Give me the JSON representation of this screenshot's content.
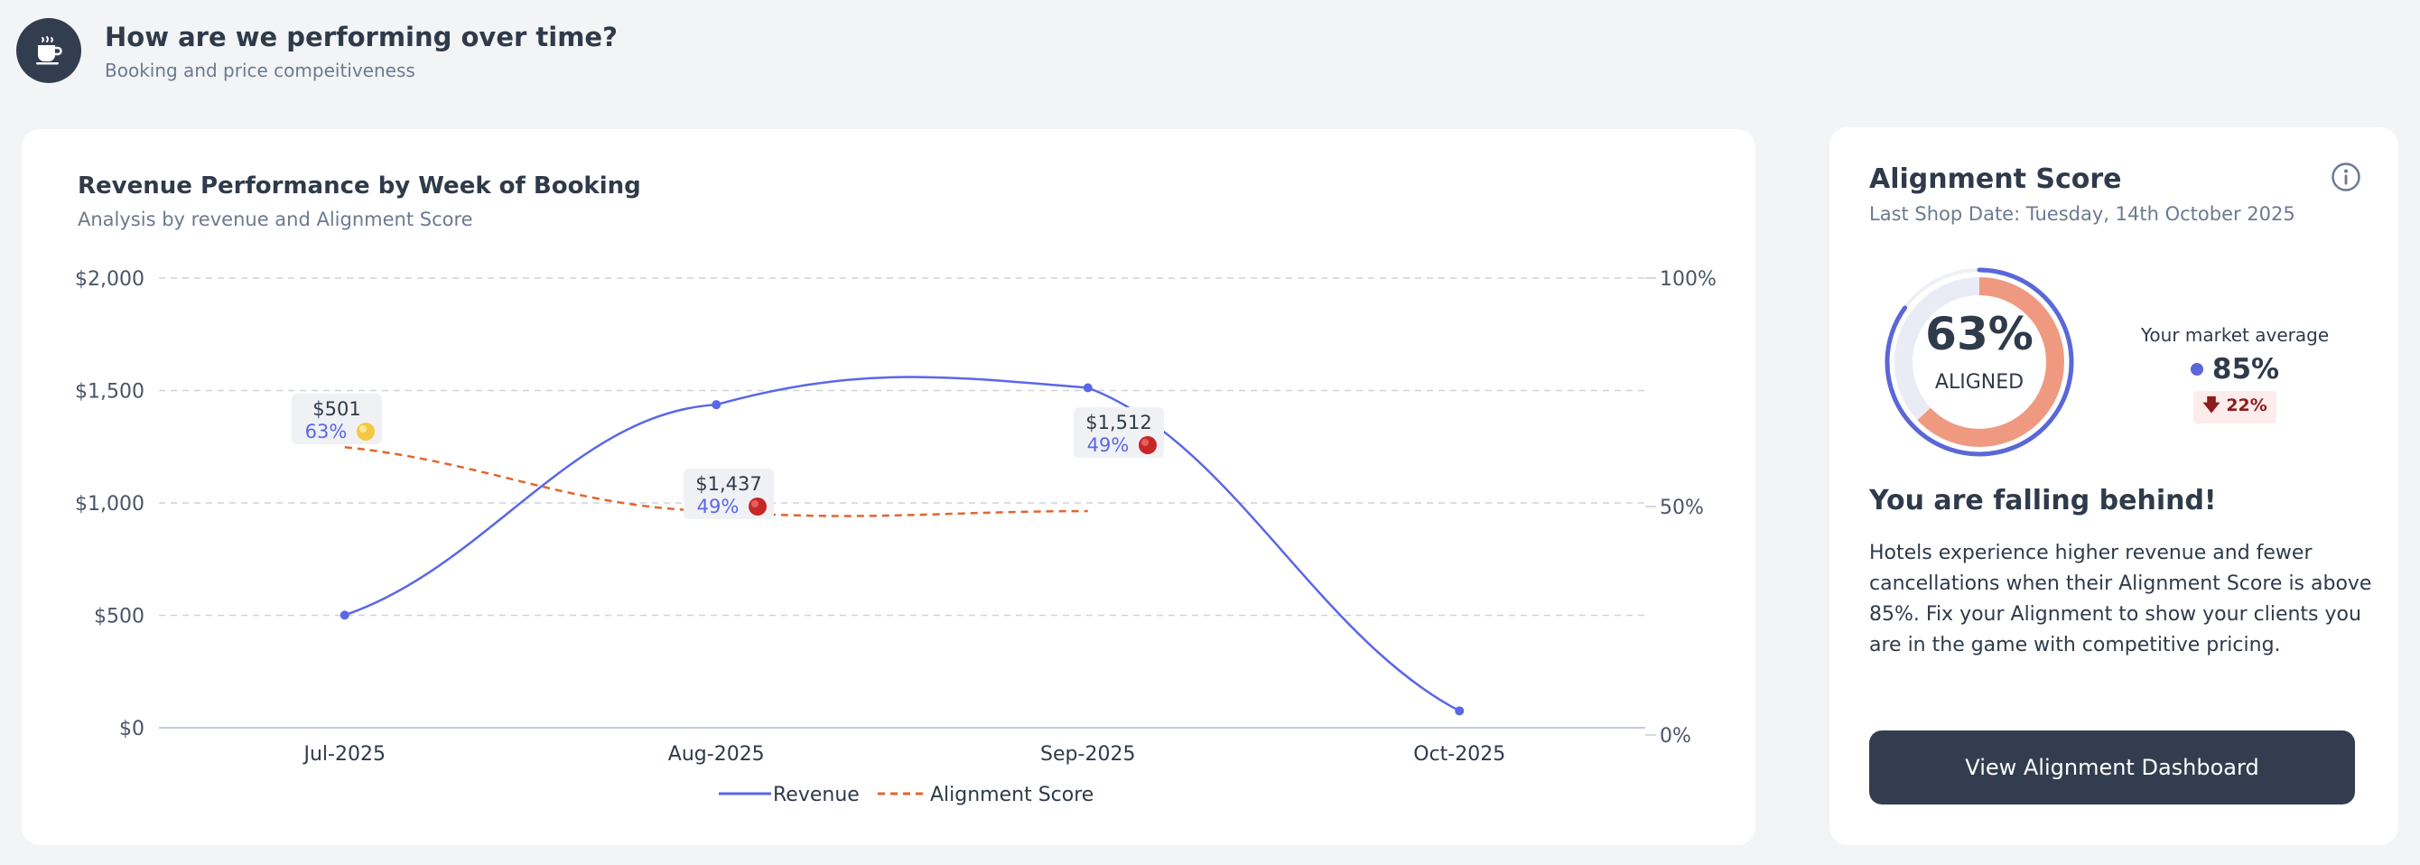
{
  "header": {
    "title": "How are we performing over time?",
    "subtitle": "Booking and price compeitiveness",
    "icon": "coffee-cup-icon"
  },
  "chart": {
    "title": "Revenue Performance by Week of Booking",
    "subtitle": "Analysis by revenue and Alignment Score"
  },
  "chart_data": {
    "type": "line",
    "title": "Revenue Performance by Week of Booking",
    "subtitle": "Analysis by revenue and Alignment Score",
    "categories": [
      "Jul-2025",
      "Aug-2025",
      "Sep-2025",
      "Oct-2025"
    ],
    "y_left": {
      "ylim": [
        0,
        2000
      ],
      "ticks": [
        "$0",
        "$500",
        "$1,000",
        "$1,500",
        "$2,000"
      ]
    },
    "y_right": {
      "ylim": [
        0,
        100
      ],
      "ticks": [
        "0%",
        "50%",
        "100%"
      ]
    },
    "grid": true,
    "legend_position": "bottom-center",
    "series": [
      {
        "name": "Revenue",
        "axis": "left",
        "color": "#5a67e8",
        "style": "solid",
        "values": [
          501,
          1437,
          1512,
          75
        ]
      },
      {
        "name": "Alignment Score",
        "axis": "right",
        "color": "#e0662f",
        "style": "dashed",
        "values": [
          63,
          49,
          49,
          null
        ]
      }
    ],
    "annotations": [
      {
        "category": "Jul-2025",
        "revenue_label": "$501",
        "score_label": "63%",
        "status": "yellow"
      },
      {
        "category": "Aug-2025",
        "revenue_label": "$1,437",
        "score_label": "49%",
        "status": "red"
      },
      {
        "category": "Sep-2025",
        "revenue_label": "$1,512",
        "score_label": "49%",
        "status": "red"
      }
    ]
  },
  "alignment": {
    "title": "Alignment Score",
    "last_shop_date": "Last Shop Date: Tuesday, 14th October 2025",
    "info_icon": "info-icon",
    "score": 63,
    "score_label": "63%",
    "score_caption": "ALIGNED",
    "market_label": "Your market average",
    "market_value": 85,
    "market_value_label": "85%",
    "difference_label": "🡇 22%",
    "status_title": "You are falling behind!",
    "status_text": "Hotels experience higher revenue and fewer cancellations when their Alignment Score is above 85%. Fix your Alignment to show your clients you are in the game with competitive pricing.",
    "button_label": "View Alignment Dashboard",
    "colors": {
      "score_arc": "#ef9a80",
      "market_arc": "#5a67d8",
      "track": "#e9ecf5"
    }
  }
}
